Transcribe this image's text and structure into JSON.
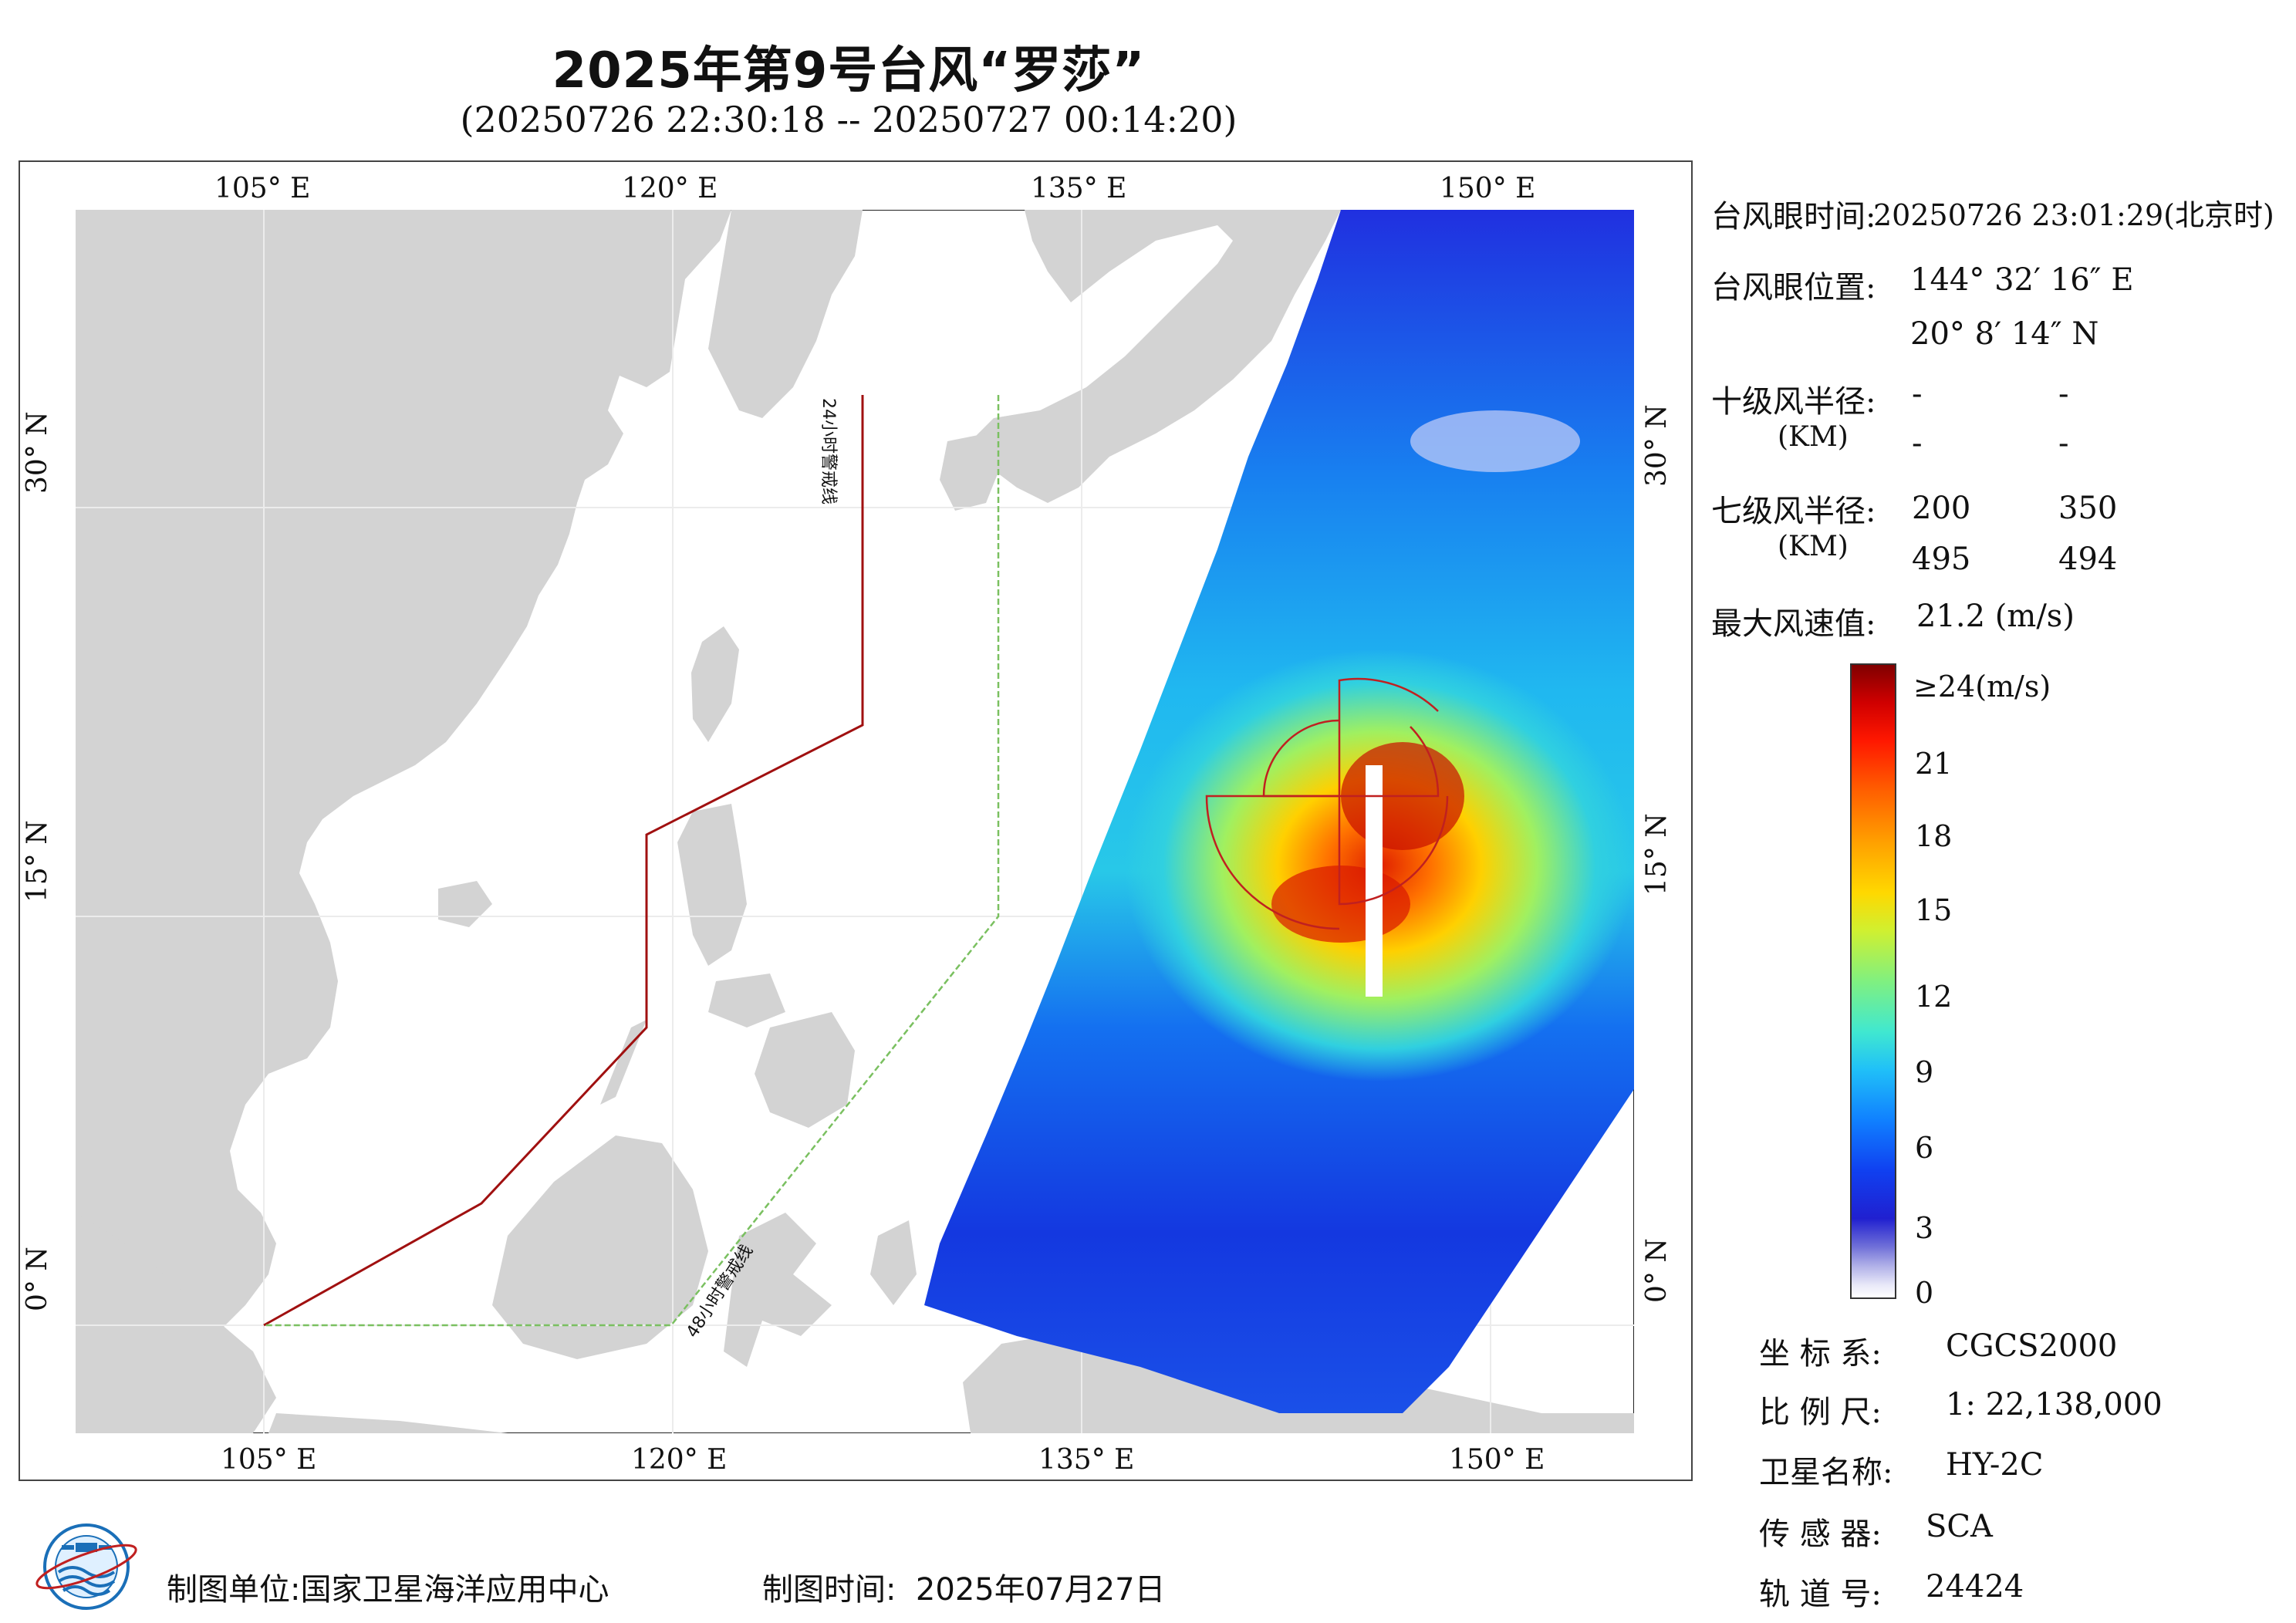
{
  "title": "2025年第9号台风“罗莎”",
  "subtitle": "(20250726 22:30:18 -- 20250727 00:14:20)",
  "map": {
    "lon_labels_top": [
      "105° E",
      "120° E",
      "135° E",
      "150° E"
    ],
    "lon_labels_bottom": [
      "105° E",
      "120° E",
      "135° E",
      "150° E"
    ],
    "lat_labels": [
      "30° N",
      "15° N",
      "0° N"
    ],
    "warning_line_24h": "24小时警戒线",
    "warning_line_48h": "48小时警戒线",
    "land_color": "#d3d3d3",
    "line24_color": "#a01010",
    "line48_color": "#7ac060",
    "circle_color": "#c02020"
  },
  "info": {
    "eye_time_label": "台风眼时间:",
    "eye_time_value": "20250726 23:01:29(北京时)",
    "eye_pos_label": "台风眼位置:",
    "eye_lon": "144° 32′ 16″ E",
    "eye_lat": "20° 8′ 14″ N",
    "r10_label": "十级风半径:",
    "r10_unit": "(KM)",
    "r10_values": [
      "-",
      "-",
      "-",
      "-"
    ],
    "r7_label": "七级风半径:",
    "r7_unit": "(KM)",
    "r7_values": [
      "200",
      "350",
      "495",
      "494"
    ],
    "max_wind_label": "最大风速值:",
    "max_wind_value": "21.2  (m/s)"
  },
  "colorbar": {
    "labels": [
      "≥24(m/s)",
      "21",
      "18",
      "15",
      "12",
      "9",
      "6",
      "3",
      "0"
    ]
  },
  "meta": {
    "crs_label": "坐 标 系:",
    "crs_value": "CGCS2000",
    "scale_label": "比 例 尺:",
    "scale_value": "1: 22,138,000",
    "sat_label": "卫星名称:",
    "sat_value": "HY-2C",
    "sensor_label": "传 感 器:",
    "sensor_value": "SCA",
    "orbit_label": "轨 道 号:",
    "orbit_value": "24424"
  },
  "footer": {
    "unit_label": "制图单位:",
    "unit_value": "国家卫星海洋应用中心",
    "time_label": "制图时间:",
    "time_value": "2025年07月27日"
  }
}
